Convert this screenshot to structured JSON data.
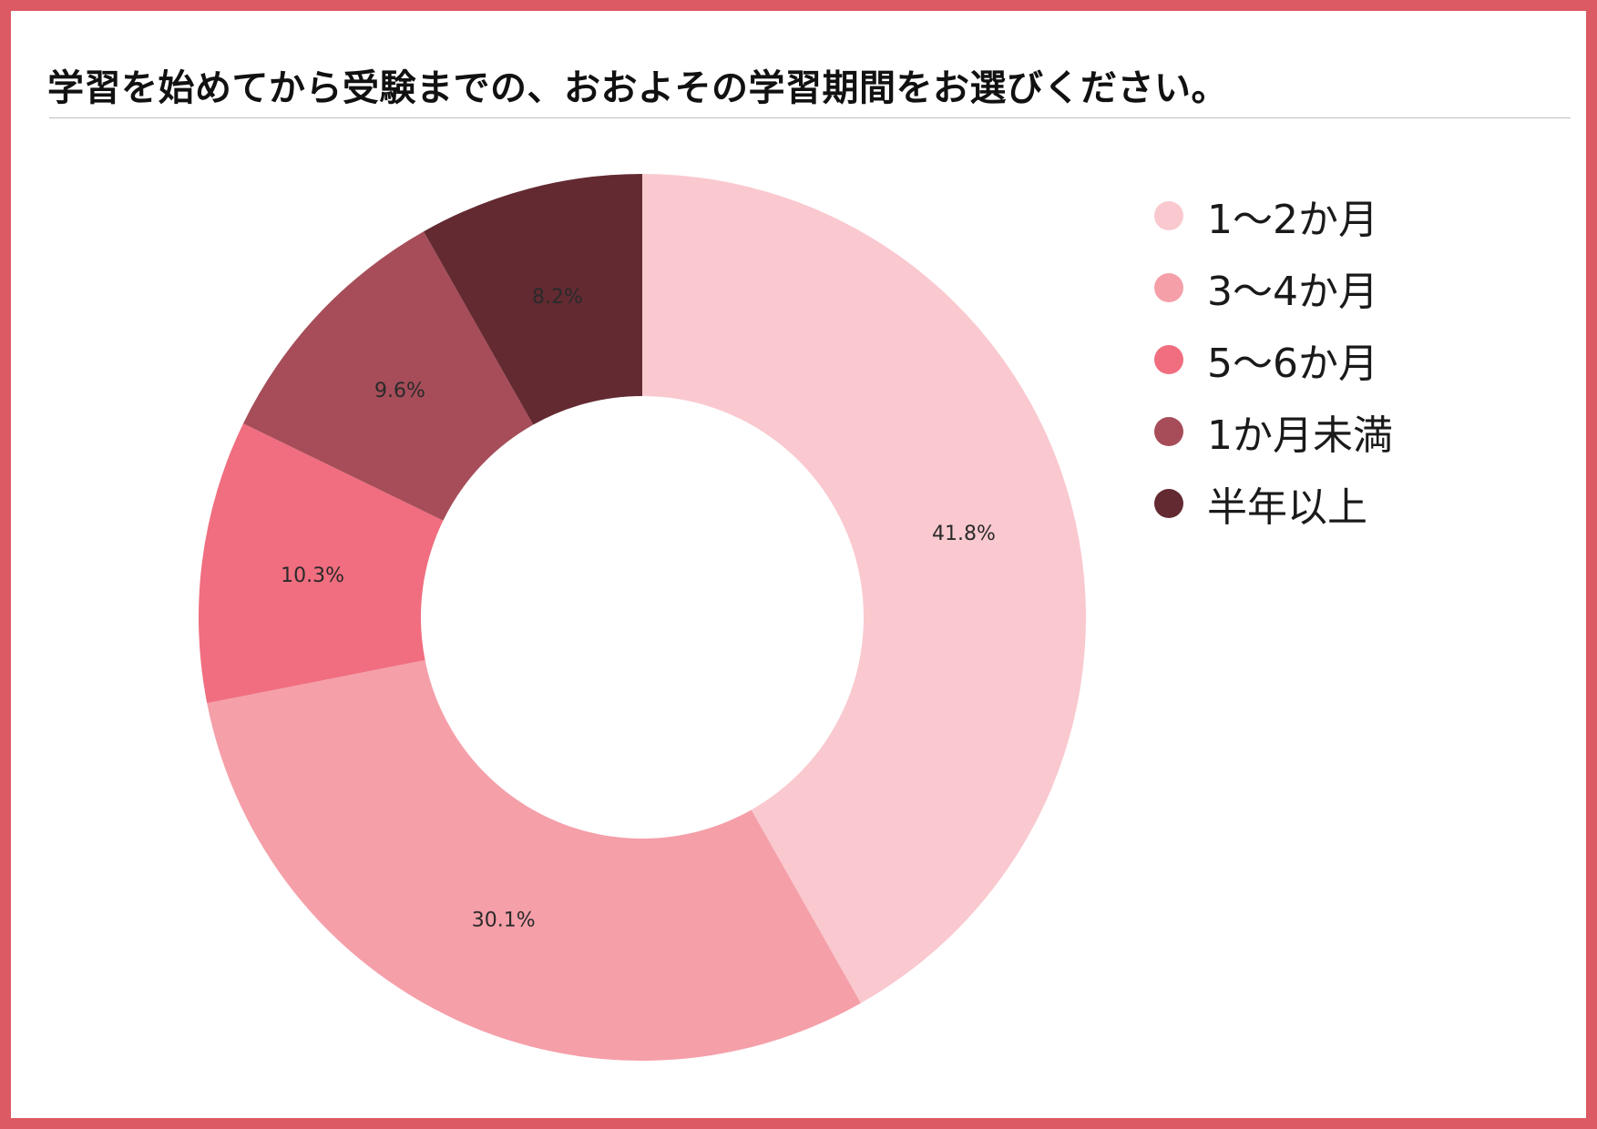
{
  "title": "学習を始めてから受験までの、おおよその学習期間をお選びください。",
  "chart_data": {
    "type": "pie",
    "donut": true,
    "legend_position": "right",
    "categories": [
      "1～2か月",
      "3～4か月",
      "5～6か月",
      "1か月未満",
      "半年以上"
    ],
    "values": [
      41.8,
      30.1,
      10.3,
      9.6,
      8.2
    ],
    "labels": [
      "41.8%",
      "30.1%",
      "10.3%",
      "9.6%",
      "8.2%"
    ],
    "colors": [
      "#f9c9cf",
      "#f59fa9",
      "#f06e7f",
      "#a64d59",
      "#632a32"
    ]
  },
  "legend": [
    {
      "label": "1～2か月",
      "color": "#f9c9cf"
    },
    {
      "label": "3～4か月",
      "color": "#f59fa9"
    },
    {
      "label": "5～6か月",
      "color": "#f06e7f"
    },
    {
      "label": "1か月未満",
      "color": "#a64d59"
    },
    {
      "label": "半年以上",
      "color": "#632a32"
    }
  ]
}
